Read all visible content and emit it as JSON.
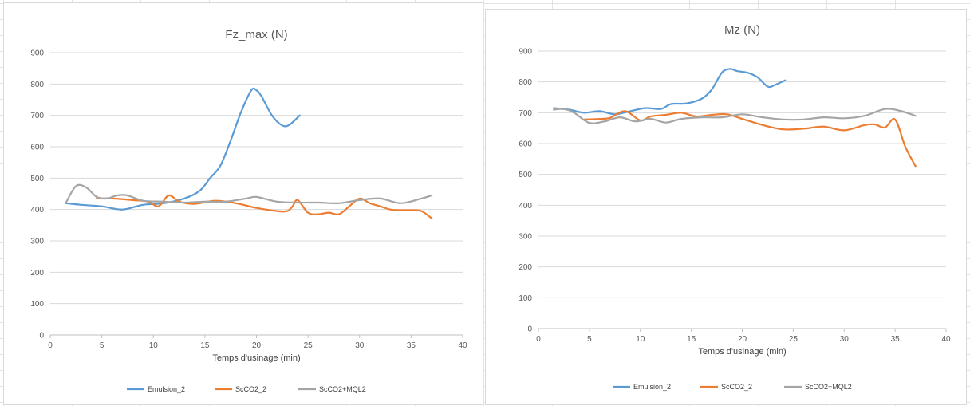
{
  "chart_data": [
    {
      "type": "line",
      "title": "Fz_max (N)",
      "xlabel": "Temps d'usinage (min)",
      "ylabel": "",
      "xlim": [
        0,
        40
      ],
      "ylim": [
        0,
        900
      ],
      "xticks": [
        0,
        5,
        10,
        15,
        20,
        25,
        30,
        35,
        40
      ],
      "yticks": [
        0,
        100,
        200,
        300,
        400,
        500,
        600,
        700,
        800,
        900
      ],
      "grid": "horizontal",
      "legend": "bottom",
      "series": [
        {
          "name": "Emulsion_2",
          "color": "#5b9bd5",
          "x": [
            1.5,
            3,
            5,
            7,
            9,
            11,
            13,
            14.5,
            15.5,
            16.5,
            17.5,
            18.5,
            19.5,
            20,
            20.5,
            21.5,
            22.5,
            23.2,
            24.2
          ],
          "y": [
            420,
            415,
            410,
            400,
            415,
            420,
            435,
            460,
            500,
            540,
            620,
            710,
            780,
            780,
            760,
            700,
            668,
            670,
            700
          ]
        },
        {
          "name": "ScCO2_2",
          "color": "#ed7d31",
          "x": [
            4.5,
            6,
            8,
            9.5,
            10.5,
            11.5,
            12.5,
            14,
            16,
            18,
            20,
            22,
            23,
            23.5,
            24,
            25,
            26,
            27,
            28,
            29,
            30,
            31,
            32,
            33,
            34,
            35,
            36,
            37
          ],
          "y": [
            435,
            435,
            430,
            425,
            410,
            445,
            425,
            418,
            428,
            420,
            405,
            395,
            395,
            410,
            430,
            390,
            385,
            390,
            385,
            410,
            435,
            420,
            410,
            400,
            398,
            398,
            395,
            372
          ]
        },
        {
          "name": "ScCO2+MQL2",
          "color": "#a5a5a5",
          "x": [
            1.5,
            2.5,
            3.5,
            4.5,
            5.5,
            6.5,
            7.5,
            9,
            11,
            13,
            15,
            17,
            19,
            20,
            22,
            24,
            26,
            28,
            30,
            32,
            34,
            36,
            37
          ],
          "y": [
            420,
            475,
            470,
            440,
            435,
            445,
            445,
            428,
            425,
            422,
            425,
            425,
            435,
            440,
            425,
            422,
            422,
            420,
            430,
            435,
            420,
            435,
            445
          ]
        }
      ]
    },
    {
      "type": "line",
      "title": "Mz (N)",
      "xlabel": "Temps d'usinage (min)",
      "ylabel": "",
      "xlim": [
        0,
        40
      ],
      "ylim": [
        0,
        900
      ],
      "xticks": [
        0,
        5,
        10,
        15,
        20,
        25,
        30,
        35,
        40
      ],
      "yticks": [
        0,
        100,
        200,
        300,
        400,
        500,
        600,
        700,
        800,
        900
      ],
      "grid": "horizontal",
      "legend": "bottom",
      "series": [
        {
          "name": "Emulsion_2",
          "color": "#5b9bd5",
          "x": [
            1.5,
            3,
            4.5,
            6,
            7.5,
            9,
            10.5,
            12,
            13,
            14.5,
            16,
            17,
            18,
            18.8,
            19.5,
            20.5,
            21.5,
            22.5,
            23.2,
            24.2
          ],
          "y": [
            715,
            710,
            700,
            705,
            695,
            705,
            715,
            712,
            728,
            730,
            745,
            775,
            830,
            842,
            835,
            830,
            815,
            785,
            790,
            805
          ]
        },
        {
          "name": "ScCO2_2",
          "color": "#ed7d31",
          "x": [
            4.5,
            6,
            7,
            8.5,
            10,
            11,
            12.5,
            14,
            15.5,
            17,
            18.5,
            20,
            22,
            24,
            26,
            28,
            30,
            32,
            33,
            34,
            35,
            36,
            37
          ],
          "y": [
            678,
            680,
            683,
            705,
            675,
            688,
            693,
            700,
            688,
            693,
            695,
            680,
            660,
            646,
            648,
            655,
            643,
            660,
            662,
            652,
            678,
            590,
            527
          ]
        },
        {
          "name": "ScCO2+MQL2",
          "color": "#a5a5a5",
          "x": [
            1.5,
            2.5,
            3.5,
            5,
            6.5,
            8,
            9.5,
            11,
            12.5,
            14,
            16,
            18,
            20,
            22,
            24,
            26,
            28,
            30,
            32,
            34,
            35.5,
            37
          ],
          "y": [
            710,
            712,
            700,
            667,
            672,
            685,
            672,
            680,
            668,
            680,
            685,
            685,
            695,
            685,
            678,
            678,
            685,
            682,
            690,
            712,
            706,
            690
          ]
        }
      ]
    }
  ]
}
